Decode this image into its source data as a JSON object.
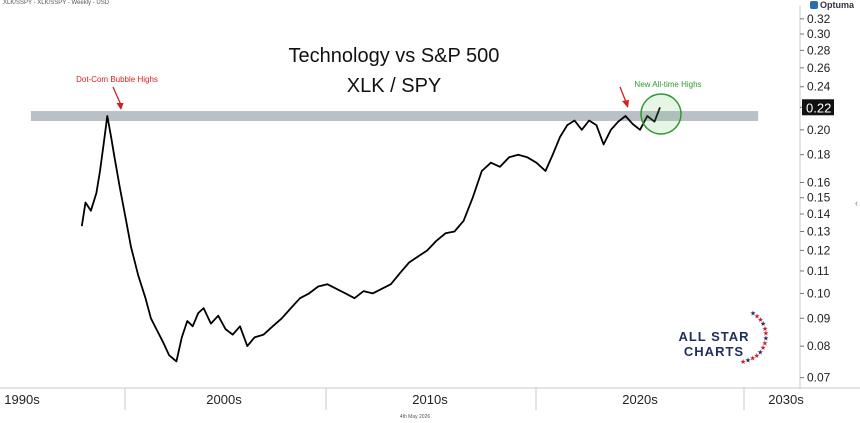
{
  "header": {
    "symbol_line": "XLK/SSPY - XLK/SSPY - Weekly - USD",
    "brand": "Optuma",
    "footer_date": "4th May 2026"
  },
  "logo": {
    "line1": "ALL STAR",
    "line2": "CHARTS"
  },
  "colors": {
    "line": "#000000",
    "band": "#b9c0c8",
    "red_annotation": "#d62020",
    "green_annotation": "#2e9a2e",
    "logo_navy": "#1f2f5c",
    "logo_red": "#c8202e"
  },
  "chart_data": {
    "type": "line",
    "title": "Technology vs S&P 500",
    "subtitle": "XLK / SPY",
    "scale": "log",
    "ylim": [
      0.067,
      0.335
    ],
    "xlim": [
      1990.0,
      2034.0
    ],
    "x_ticks": [
      "1990s",
      "2000s",
      "2010s",
      "2020s",
      "2030s"
    ],
    "y_ticks": [
      "0.32",
      "0.30",
      "0.28",
      "0.26",
      "0.24",
      "0.22",
      "0.20",
      "0.18",
      "0.16",
      "0.15",
      "0.14",
      "0.13",
      "0.12",
      "0.11",
      "0.10",
      "0.09",
      "0.08",
      "0.07"
    ],
    "last_value": "0.22",
    "horizontal_band_level": 0.212,
    "annotations": [
      {
        "text": "Dot-Com Bubble Highs",
        "color": "red",
        "points_to": [
          1995.5,
          0.212
        ]
      },
      {
        "text": "New All-time Highs",
        "color": "green",
        "points_to": [
          2020.4,
          0.212
        ]
      }
    ],
    "series": [
      {
        "x": [
          1994.5,
          1994.7,
          1995.0,
          1995.3,
          1995.5,
          1995.7,
          1995.9,
          1996.1,
          1996.3,
          1996.6,
          1996.9,
          1997.2,
          1997.6,
          1998.0,
          1998.3,
          1998.6,
          1999.0,
          1999.3,
          1999.7,
          2000.0,
          2000.3,
          2000.6,
          2000.9,
          2001.2,
          2001.6,
          2002.0,
          2002.4,
          2002.8,
          2003.2,
          2003.6,
          2004.0,
          2004.5,
          2005.0,
          2005.5,
          2006.0,
          2006.5,
          2007.0,
          2007.5,
          2008.0,
          2008.5,
          2009.0,
          2009.5,
          2010.0,
          2010.5,
          2011.0,
          2011.5,
          2012.0,
          2012.5,
          2013.0,
          2013.5,
          2014.0,
          2014.5,
          2015.0,
          2015.5,
          2016.0,
          2016.5,
          2017.0,
          2017.5,
          2018.0,
          2018.5,
          2019.0,
          2019.5,
          2020.0,
          2020.4,
          2020.8,
          2021.2,
          2021.6,
          2022.0,
          2022.4,
          2022.8,
          2023.2,
          2023.6,
          2024.0,
          2024.4,
          2024.8,
          2025.2,
          2025.6,
          2026.0,
          2026.3
        ],
        "y": [
          0.133,
          0.147,
          0.142,
          0.153,
          0.168,
          0.188,
          0.212,
          0.195,
          0.178,
          0.156,
          0.138,
          0.122,
          0.108,
          0.098,
          0.09,
          0.086,
          0.081,
          0.077,
          0.075,
          0.083,
          0.089,
          0.087,
          0.092,
          0.094,
          0.088,
          0.091,
          0.086,
          0.084,
          0.087,
          0.08,
          0.083,
          0.084,
          0.087,
          0.09,
          0.094,
          0.098,
          0.1,
          0.103,
          0.104,
          0.102,
          0.1,
          0.098,
          0.101,
          0.1,
          0.102,
          0.104,
          0.109,
          0.114,
          0.117,
          0.12,
          0.125,
          0.129,
          0.13,
          0.136,
          0.15,
          0.168,
          0.174,
          0.171,
          0.178,
          0.18,
          0.178,
          0.174,
          0.168,
          0.18,
          0.194,
          0.204,
          0.208,
          0.2,
          0.208,
          0.204,
          0.188,
          0.2,
          0.207,
          0.212,
          0.205,
          0.2,
          0.212,
          0.207,
          0.22
        ]
      }
    ]
  }
}
